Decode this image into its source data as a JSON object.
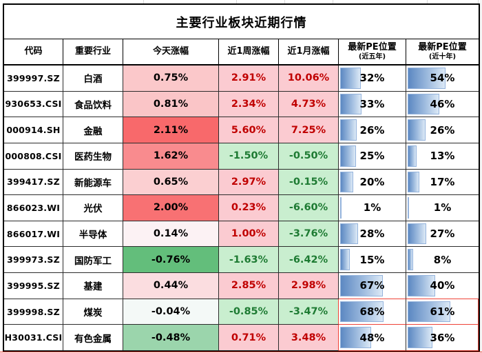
{
  "title": "主要行业板块近期行情",
  "header": {
    "code": "代码",
    "industry": "重要行业",
    "today": "今天涨幅",
    "week": "近1周涨幅",
    "month": "近1月涨幅",
    "pe5": {
      "line1": "最新PE位置",
      "line2": "(近五年)"
    },
    "pe10": {
      "line1": "最新PE位置",
      "line2": "(近十年)"
    }
  },
  "colors": {
    "positive_text": "#c00000",
    "negative_text": "#1e7b33",
    "positive_bg": "#fbcbd1",
    "negative_bg": "#c9eecf",
    "today_max_red": "#f8696b",
    "today_min_green": "#63be7b",
    "bar_gradient_start": "#5c88c2",
    "bar_gradient_end": "#dce9f6",
    "bar_border": "#94b3dc",
    "highlight_border": "#ef4136"
  },
  "rows": [
    {
      "code": "399997.SZ",
      "industry": "白酒",
      "today": "0.75%",
      "today_bg": "#fbc8ca",
      "week": "2.91%",
      "week_sign": "pos",
      "month": "10.06%",
      "month_sign": "pos",
      "pe5": "32%",
      "pe5_val": 32,
      "pe10": "54%",
      "pe10_val": 54,
      "highlight": false
    },
    {
      "code": "930653.CSI",
      "industry": "食品饮料",
      "today": "0.81%",
      "today_bg": "#fac5c7",
      "week": "2.34%",
      "week_sign": "pos",
      "month": "4.73%",
      "month_sign": "pos",
      "pe5": "33%",
      "pe5_val": 33,
      "pe10": "46%",
      "pe10_val": 46,
      "highlight": false
    },
    {
      "code": "000914.SH",
      "industry": "金融",
      "today": "2.11%",
      "today_bg": "#f8696b",
      "week": "5.60%",
      "week_sign": "pos",
      "month": "7.25%",
      "month_sign": "pos",
      "pe5": "26%",
      "pe5_val": 26,
      "pe10": "26%",
      "pe10_val": 26,
      "highlight": false
    },
    {
      "code": "000808.CSI",
      "industry": "医药生物",
      "today": "1.62%",
      "today_bg": "#f98b8e",
      "week": "-1.50%",
      "week_sign": "neg",
      "month": "-0.50%",
      "month_sign": "neg",
      "pe5": "25%",
      "pe5_val": 25,
      "pe10": "13%",
      "pe10_val": 13,
      "highlight": false
    },
    {
      "code": "399417.SZ",
      "industry": "新能源车",
      "today": "0.65%",
      "today_bg": "#fbcfd1",
      "week": "2.97%",
      "week_sign": "pos",
      "month": "-0.15%",
      "month_sign": "neg",
      "pe5": "20%",
      "pe5_val": 20,
      "pe10": "17%",
      "pe10_val": 17,
      "highlight": false
    },
    {
      "code": "866023.WI",
      "industry": "光伏",
      "today": "2.00%",
      "today_bg": "#f87173",
      "week": "0.23%",
      "week_sign": "pos",
      "month": "-6.60%",
      "month_sign": "neg",
      "pe5": "1%",
      "pe5_val": 1,
      "pe10": "1%",
      "pe10_val": 1,
      "highlight": false
    },
    {
      "code": "866017.WI",
      "industry": "半导体",
      "today": "0.14%",
      "today_bg": "#fcf2f4",
      "week": "1.00%",
      "week_sign": "pos",
      "month": "-3.76%",
      "month_sign": "neg",
      "pe5": "28%",
      "pe5_val": 28,
      "pe10": "27%",
      "pe10_val": 27,
      "highlight": false
    },
    {
      "code": "399973.SZ",
      "industry": "国防军工",
      "today": "-0.76%",
      "today_bg": "#63be7b",
      "week": "-1.63%",
      "week_sign": "neg",
      "month": "-6.42%",
      "month_sign": "neg",
      "pe5": "15%",
      "pe5_val": 15,
      "pe10": "8%",
      "pe10_val": 8,
      "highlight": false
    },
    {
      "code": "399995.SZ",
      "industry": "基建",
      "today": "0.44%",
      "today_bg": "#fbdde0",
      "week": "2.85%",
      "week_sign": "pos",
      "month": "2.98%",
      "month_sign": "pos",
      "pe5": "67%",
      "pe5_val": 67,
      "pe10": "40%",
      "pe10_val": 40,
      "highlight": false
    },
    {
      "code": "399998.SZ",
      "industry": "煤炭",
      "today": "-0.04%",
      "today_bg": "#f4f9f7",
      "week": "-0.85%",
      "week_sign": "neg",
      "month": "-3.47%",
      "month_sign": "neg",
      "pe5": "68%",
      "pe5_val": 68,
      "pe10": "61%",
      "pe10_val": 61,
      "highlight": true
    },
    {
      "code": "H30031.CSI",
      "industry": "有色金属",
      "today": "-0.48%",
      "today_bg": "#9bd5ac",
      "week": "0.71%",
      "week_sign": "pos",
      "month": "3.48%",
      "month_sign": "pos",
      "pe5": "48%",
      "pe5_val": 48,
      "pe10": "36%",
      "pe10_val": 36,
      "highlight": true
    }
  ],
  "chart_data": {
    "type": "table",
    "title": "主要行业板块近期行情",
    "columns": [
      "代码",
      "重要行业",
      "今天涨幅",
      "近1周涨幅",
      "近1月涨幅",
      "最新PE位置(近五年)",
      "最新PE位置(近十年)"
    ],
    "rows": [
      [
        "399997.SZ",
        "白酒",
        "0.75%",
        "2.91%",
        "10.06%",
        "32%",
        "54%"
      ],
      [
        "930653.CSI",
        "食品饮料",
        "0.81%",
        "2.34%",
        "4.73%",
        "33%",
        "46%"
      ],
      [
        "000914.SH",
        "金融",
        "2.11%",
        "5.60%",
        "7.25%",
        "26%",
        "26%"
      ],
      [
        "000808.CSI",
        "医药生物",
        "1.62%",
        "-1.50%",
        "-0.50%",
        "25%",
        "13%"
      ],
      [
        "399417.SZ",
        "新能源车",
        "0.65%",
        "2.97%",
        "-0.15%",
        "20%",
        "17%"
      ],
      [
        "866023.WI",
        "光伏",
        "2.00%",
        "0.23%",
        "-6.60%",
        "1%",
        "1%"
      ],
      [
        "866017.WI",
        "半导体",
        "0.14%",
        "1.00%",
        "-3.76%",
        "28%",
        "27%"
      ],
      [
        "399973.SZ",
        "国防军工",
        "-0.76%",
        "-1.63%",
        "-6.42%",
        "15%",
        "8%"
      ],
      [
        "399995.SZ",
        "基建",
        "0.44%",
        "2.85%",
        "2.98%",
        "67%",
        "40%"
      ],
      [
        "399998.SZ",
        "煤炭",
        "-0.04%",
        "-0.85%",
        "-3.47%",
        "68%",
        "61%"
      ],
      [
        "H30031.CSI",
        "有色金属",
        "-0.48%",
        "0.71%",
        "3.48%",
        "48%",
        "36%"
      ]
    ],
    "notes": "PE position columns are rendered as blue gradient data bars (0-100%). Today column uses red-white-green 3-color scale (max 2.11%, min -0.76%). Week/month columns: pink bg + dark red text when positive, light green bg + dark green text when negative. PE cells of last two rows (煤炭, 有色金属) are outlined in red."
  }
}
